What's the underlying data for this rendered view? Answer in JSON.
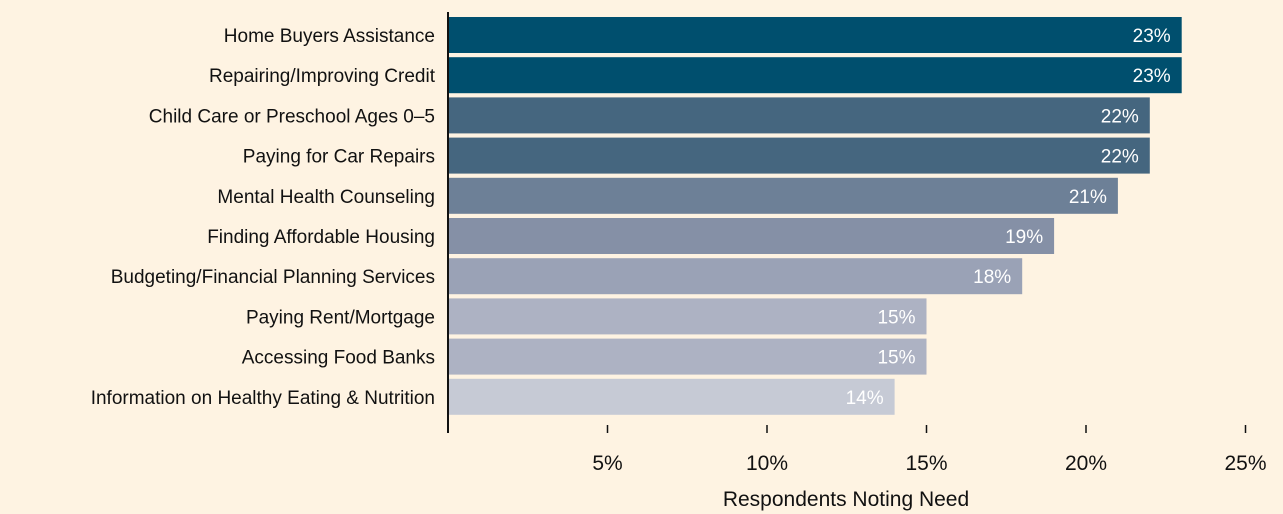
{
  "chart_data": {
    "type": "bar",
    "orientation": "horizontal",
    "title": "",
    "xlabel": "Respondents Noting Need",
    "ylabel": "",
    "xlim": [
      0,
      25
    ],
    "x_ticks": [
      {
        "value": 5,
        "label": "5%"
      },
      {
        "value": 10,
        "label": "10%"
      },
      {
        "value": 15,
        "label": "15%"
      },
      {
        "value": 20,
        "label": "20%"
      },
      {
        "value": 25,
        "label": "25%"
      }
    ],
    "grid": false,
    "legend": "none",
    "categories": [
      "Home Buyers Assistance",
      "Repairing/Improving Credit",
      "Child Care or Preschool Ages 0–5",
      "Paying for Car Repairs",
      "Mental Health Counseling",
      "Finding Affordable Housing",
      "Budgeting/Financial Planning Services",
      "Paying Rent/Mortgage",
      "Accessing Food Banks",
      "Information on Healthy Eating & Nutrition"
    ],
    "values": [
      23,
      23,
      22,
      22,
      21,
      19,
      18,
      15,
      15,
      14
    ],
    "value_labels": [
      "23%",
      "23%",
      "22%",
      "22%",
      "21%",
      "19%",
      "18%",
      "15%",
      "15%",
      "14%"
    ],
    "bar_colors": [
      "#004f6e",
      "#004f6e",
      "#45667f",
      "#45667f",
      "#6d8097",
      "#8590a6",
      "#9aa2b6",
      "#adb2c3",
      "#adb2c3",
      "#c6cad5"
    ],
    "colors": {
      "background": "#fef3e2",
      "axis": "#111111",
      "value_text": "#ffffff"
    }
  }
}
